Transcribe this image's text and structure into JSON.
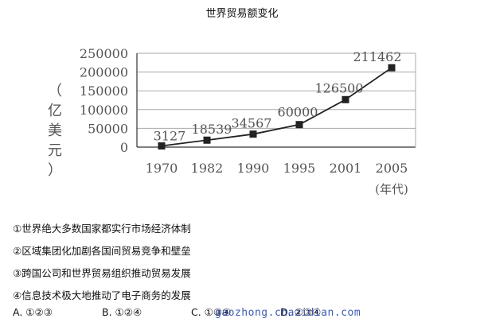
{
  "chart_data": {
    "type": "line",
    "title": "世界贸易额变化",
    "ylabel": [
      "（",
      "亿",
      "美",
      "元",
      "）"
    ],
    "xlabel": "(年代)",
    "ylim": [
      0,
      250000
    ],
    "yticks": [
      "0",
      "50000",
      "100000",
      "150000",
      "200000",
      "250000"
    ],
    "categories": [
      "1970",
      "1982",
      "1990",
      "1995",
      "2001",
      "2005"
    ],
    "values": [
      3127,
      18539,
      34567,
      60000,
      126500,
      211462
    ],
    "data_labels": [
      "3127",
      "18539",
      "34567",
      "60000",
      "126500",
      "211462"
    ],
    "grid": "horizontal",
    "marker": "square",
    "colors": {
      "line": "#222222",
      "grid": "#aaaaaa",
      "text": "#555555"
    }
  },
  "statements": [
    "①世界绝大多数国家都实行市场经济体制",
    "②区域集团化加剧各国间贸易竞争和壁垒",
    "③跨国公司和世界贸易组织推动贸易发展",
    "④信息技术极大地推动了电子商务的发展"
  ],
  "choices": [
    "A. ①②③",
    "B. ①②④",
    "C. ①③④",
    "D. ②③④"
  ],
  "watermark": "gaozhong.chazidian.com"
}
